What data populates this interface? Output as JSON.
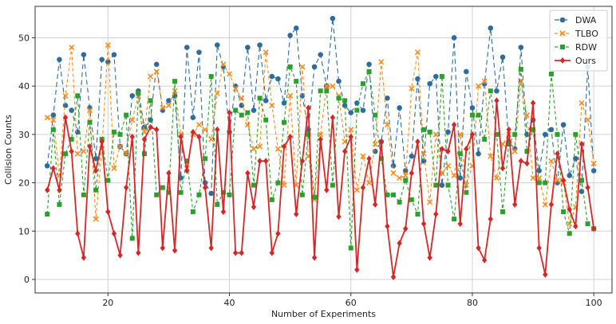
{
  "chart_data": {
    "type": "line",
    "xlabel": "Number of Experiments",
    "ylabel": "Collision Counts",
    "xlim": [
      8,
      103
    ],
    "ylim": [
      -2.8,
      56.5
    ],
    "xticks": [
      20,
      40,
      60,
      80,
      100
    ],
    "yticks": [
      0,
      10,
      20,
      30,
      40,
      50
    ],
    "grid": true,
    "legend_position": "top-right",
    "x": [
      10,
      11,
      12,
      13,
      14,
      15,
      16,
      17,
      18,
      19,
      20,
      21,
      22,
      23,
      24,
      25,
      26,
      27,
      28,
      29,
      30,
      31,
      32,
      33,
      34,
      35,
      36,
      37,
      38,
      39,
      40,
      41,
      42,
      43,
      44,
      45,
      46,
      47,
      48,
      49,
      50,
      51,
      52,
      53,
      54,
      55,
      56,
      57,
      58,
      59,
      60,
      61,
      62,
      63,
      64,
      65,
      66,
      67,
      68,
      69,
      70,
      71,
      72,
      73,
      74,
      75,
      76,
      77,
      78,
      79,
      80,
      81,
      82,
      83,
      84,
      85,
      86,
      87,
      88,
      89,
      90,
      91,
      92,
      93,
      94,
      95,
      96,
      97,
      98,
      99,
      100
    ],
    "series": [
      {
        "name": "DWA",
        "color": "#2f6c9e",
        "marker": "circle",
        "dash": "6,4",
        "values": [
          23.5,
          34,
          45.5,
          36,
          35,
          30.5,
          46.5,
          35.5,
          25,
          45.5,
          45,
          46.5,
          27.5,
          26,
          38,
          39,
          31.5,
          33,
          44.5,
          35,
          37,
          38,
          21,
          48,
          33.5,
          47,
          20,
          17.8,
          48.5,
          44,
          30.5,
          40,
          36,
          48,
          35,
          48.5,
          37,
          42,
          41.5,
          36.5,
          50.5,
          52,
          38,
          31,
          44,
          46.5,
          40,
          54,
          41,
          36,
          34.5,
          36.5,
          35,
          44.5,
          26.5,
          28.5,
          37.5,
          23.5,
          35.5,
          22.5,
          25.5,
          41.5,
          24.5,
          40.5,
          42,
          19.5,
          30.5,
          50,
          21,
          43,
          35.5,
          26,
          40.5,
          52,
          39,
          46,
          28.5,
          27,
          48,
          30,
          33,
          22.5,
          30,
          31,
          20,
          32,
          21.5,
          25,
          18.2,
          44,
          22.5
        ]
      },
      {
        "name": "TLBO",
        "color": "#ff8c1a",
        "marker": "x",
        "dash": "4,3",
        "values": [
          33.5,
          33,
          21.5,
          38,
          48,
          26,
          26.5,
          35,
          12.5,
          27,
          48.5,
          23,
          27.5,
          26,
          33,
          38,
          30.5,
          42,
          43,
          35.5,
          36,
          39,
          30,
          23,
          30,
          32,
          31,
          29,
          38.5,
          44.5,
          42.5,
          39.5,
          37.5,
          32,
          27,
          27.5,
          47,
          36,
          27,
          19.5,
          38,
          19.5,
          44,
          25.5,
          16.5,
          30,
          40,
          40,
          38,
          28.5,
          31,
          18.5,
          25.5,
          20,
          28,
          45,
          32,
          22,
          21,
          21.5,
          39.5,
          47,
          26,
          16,
          30,
          22,
          23.5,
          21.5,
          30,
          19.5,
          23.5,
          40,
          41,
          25.5,
          21,
          28,
          30,
          26.5,
          41,
          34,
          21,
          21,
          15.5,
          24.5,
          20.5,
          20,
          11.5,
          15,
          36.5,
          33,
          24
        ]
      },
      {
        "name": "RDW",
        "color": "#2ca02c",
        "marker": "square",
        "dash": "4,3",
        "values": [
          13.5,
          31,
          15.5,
          26,
          29,
          38,
          17.5,
          32.5,
          18.5,
          29,
          20.5,
          30.5,
          30,
          34,
          8.5,
          38.5,
          26,
          37,
          17.5,
          19,
          18,
          41,
          18,
          24.5,
          14,
          17.5,
          25,
          42,
          15.5,
          18,
          17.5,
          35,
          34,
          34.5,
          19.5,
          37.5,
          33,
          16.5,
          20,
          32.5,
          44,
          41,
          17.5,
          30,
          17,
          39,
          39,
          19.5,
          37.5,
          37,
          6.5,
          35,
          40.5,
          43,
          34,
          25,
          17.5,
          17.5,
          16,
          20.5,
          16.5,
          13.5,
          31,
          30.5,
          19.5,
          42,
          19.5,
          12.5,
          26,
          18,
          34,
          34,
          29,
          39,
          30,
          14,
          28,
          30,
          43.5,
          26.5,
          31,
          20,
          20,
          42.5,
          30,
          14,
          9.5,
          30,
          20.5,
          11.5,
          10.5
        ]
      },
      {
        "name": "Ours",
        "color": "#d62728",
        "marker": "diamond",
        "dash": "",
        "values": [
          18.5,
          23,
          18.5,
          33.5,
          26.5,
          9.5,
          4.5,
          27.5,
          22.5,
          28.5,
          14,
          9.5,
          5,
          19,
          29.5,
          5.5,
          29,
          31.5,
          31,
          6.5,
          22,
          6,
          29.5,
          22.5,
          30.5,
          29.5,
          19,
          6.5,
          31,
          14,
          34.5,
          5.5,
          5.5,
          22,
          15,
          24.5,
          24.5,
          5.5,
          9.5,
          27.5,
          29.5,
          13.5,
          24.5,
          35.5,
          4.5,
          29,
          18.5,
          33.5,
          13,
          26.5,
          29.5,
          2,
          19,
          25,
          15.5,
          28.5,
          11,
          0.5,
          7.5,
          10.5,
          22,
          28.5,
          11.5,
          4.5,
          13.5,
          27,
          26.5,
          32,
          11.5,
          27,
          30,
          6.5,
          4,
          12.5,
          37,
          23,
          31,
          15.5,
          24.5,
          24,
          36.5,
          6.5,
          1,
          15.5,
          26,
          20.5,
          14.5,
          11,
          28,
          19,
          10.5
        ]
      }
    ]
  }
}
